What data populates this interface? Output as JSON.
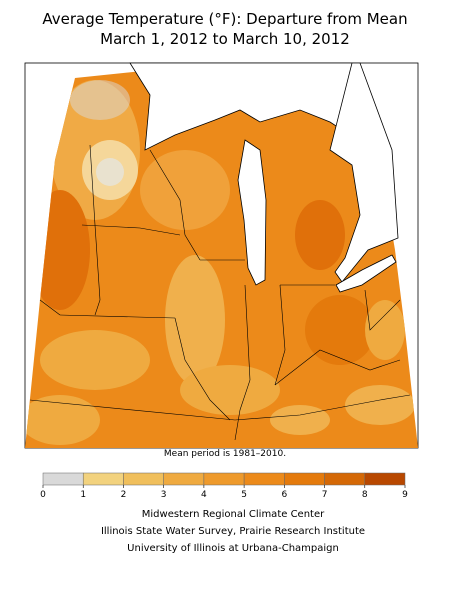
{
  "title": [
    "Average Temperature (°F): Departure from Mean",
    "March 1, 2012 to March 10, 2012"
  ],
  "note": "Mean period is 1981–2010.",
  "legend": {
    "ticks": [
      0,
      1,
      2,
      3,
      4,
      5,
      6,
      7,
      8,
      9
    ],
    "colors": [
      "#d9d9d9",
      "#f2d27e",
      "#f0bf5c",
      "#efaa40",
      "#ee9a2c",
      "#ec8a1a",
      "#e47a0c",
      "#d46806",
      "#b84800"
    ]
  },
  "credits": [
    "Midwestern Regional Climate Center",
    "Illinois State Water Survey, Prairie Research Institute",
    "University of Illinois at Urbana-Champaign"
  ]
}
